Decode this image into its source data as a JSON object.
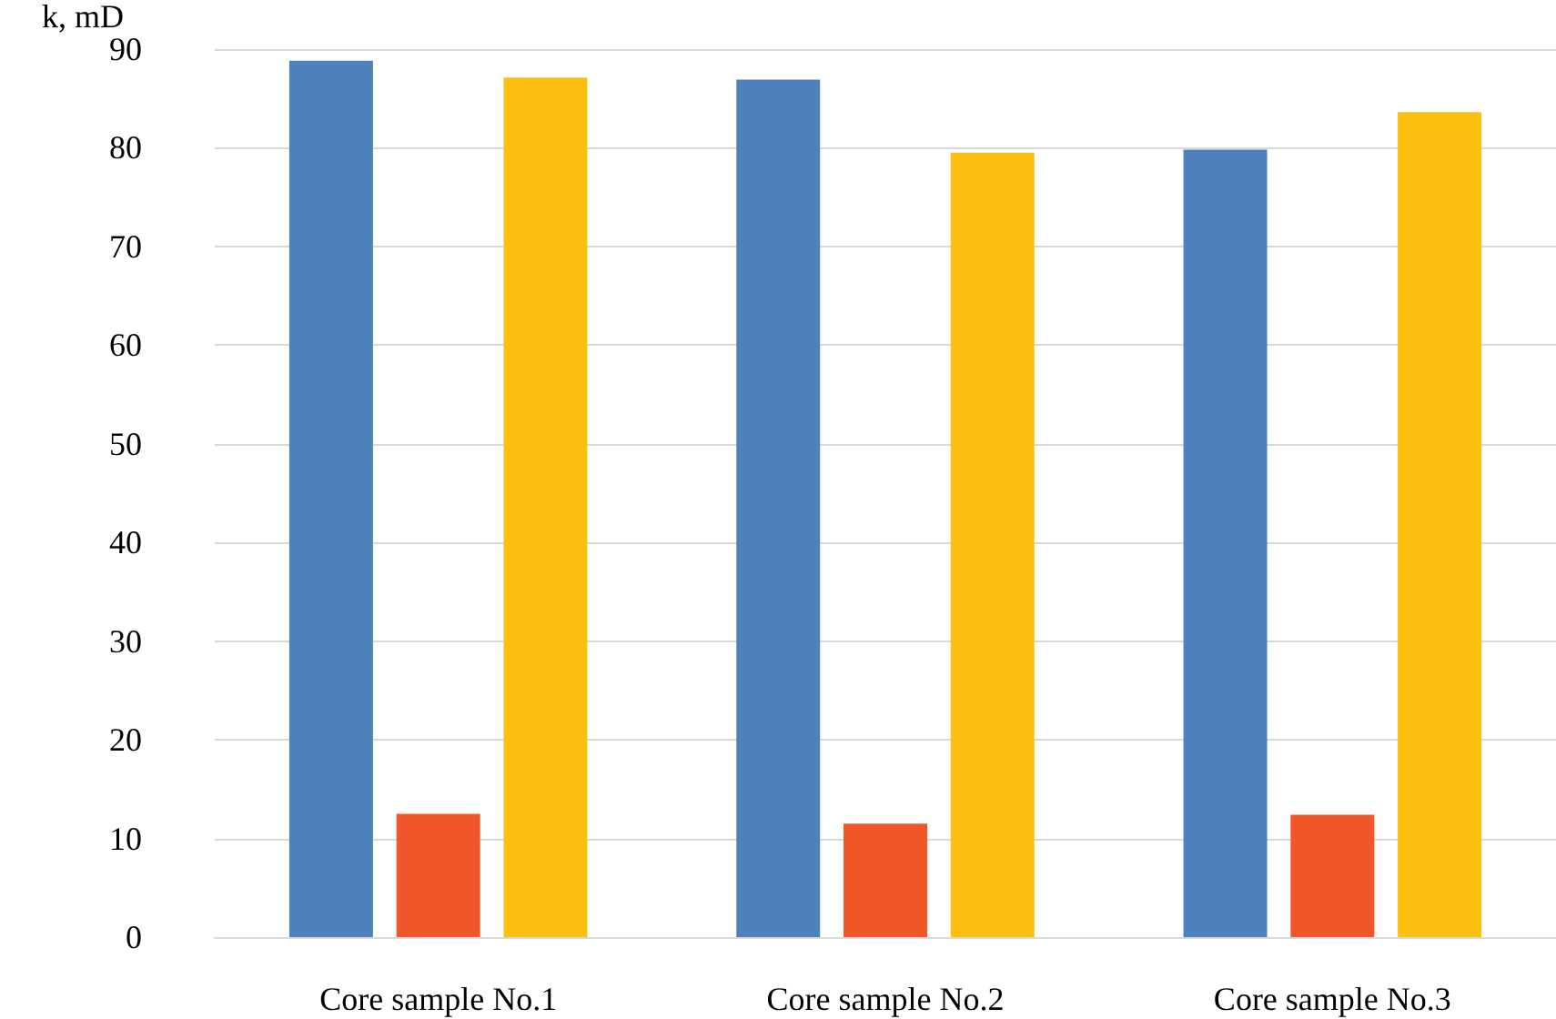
{
  "chart_data": {
    "type": "bar",
    "ylabel": "k, mD",
    "categories": [
      "Core sample No.1",
      "Core sample No.2",
      "Core sample No.3"
    ],
    "series": [
      {
        "color": "#4f81bd",
        "values": [
          88.8,
          86.9,
          79.8
        ]
      },
      {
        "color": "#f0562a",
        "values": [
          12.5,
          11.5,
          12.4
        ]
      },
      {
        "color": "#fdc010",
        "values": [
          87.1,
          79.5,
          83.6
        ]
      }
    ],
    "ylim": [
      0,
      90
    ],
    "yticks": [
      0,
      10,
      20,
      30,
      40,
      50,
      60,
      70,
      80,
      90
    ],
    "grid": "y"
  }
}
